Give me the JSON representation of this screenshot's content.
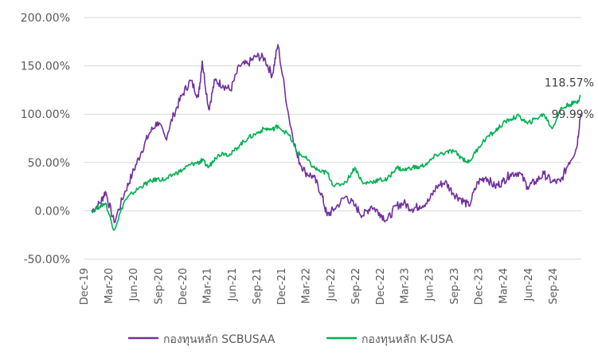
{
  "chart_data": {
    "type": "line",
    "title": "",
    "xlabel": "",
    "ylabel": "",
    "ylim": [
      -50,
      200
    ],
    "yticks": [
      "-50.00%",
      "0.00%",
      "50.00%",
      "100.00%",
      "150.00%",
      "200.00%"
    ],
    "ytick_values": [
      -50,
      0,
      50,
      100,
      150,
      200
    ],
    "xticks": [
      "Dec-19",
      "Mar-20",
      "Jun-20",
      "Sep-20",
      "Dec-20",
      "Mar-21",
      "Jun-21",
      "Sep-21",
      "Dec-21",
      "Mar-22",
      "Jun-22",
      "Sep-22",
      "Dec-22",
      "Mar-23",
      "Jun-23",
      "Sep-23",
      "Dec-23",
      "Mar-24",
      "Jun-24",
      "Sep-24"
    ],
    "grid": "horizontal",
    "legend_position": "bottom",
    "x": [
      "2019-12-31",
      "2020-01-31",
      "2020-02-20",
      "2020-03-23",
      "2020-04-30",
      "2020-05-29",
      "2020-06-30",
      "2020-07-31",
      "2020-08-31",
      "2020-09-30",
      "2020-10-30",
      "2020-11-30",
      "2020-12-31",
      "2021-01-29",
      "2021-02-12",
      "2021-03-08",
      "2021-03-31",
      "2021-04-30",
      "2021-05-28",
      "2021-06-30",
      "2021-07-30",
      "2021-08-31",
      "2021-09-30",
      "2021-10-29",
      "2021-11-19",
      "2021-12-31",
      "2022-01-31",
      "2022-02-28",
      "2022-03-31",
      "2022-04-29",
      "2022-05-20",
      "2022-06-16",
      "2022-07-29",
      "2022-08-31",
      "2022-09-30",
      "2022-10-31",
      "2022-11-30",
      "2022-12-28",
      "2023-01-31",
      "2023-02-28",
      "2023-03-31",
      "2023-04-28",
      "2023-05-31",
      "2023-06-30",
      "2023-07-31",
      "2023-08-31",
      "2023-09-29",
      "2023-10-27",
      "2023-11-30",
      "2023-12-29",
      "2024-01-31",
      "2024-02-29",
      "2024-03-28",
      "2024-04-30",
      "2024-05-31",
      "2024-06-28",
      "2024-07-31",
      "2024-08-30",
      "2024-09-30",
      "2024-10-31",
      "2024-11-29",
      "2024-12-13"
    ],
    "series": [
      {
        "name": "กองทุนหลัก SCBUSAA",
        "color": "#7030A0",
        "values": [
          0,
          8,
          20,
          -12,
          18,
          38,
          60,
          80,
          92,
          75,
          100,
          120,
          135,
          118,
          155,
          105,
          135,
          130,
          125,
          150,
          152,
          160,
          158,
          140,
          172,
          95,
          55,
          40,
          35,
          18,
          -5,
          2,
          15,
          5,
          -5,
          5,
          -2,
          -10,
          5,
          8,
          2,
          5,
          10,
          25,
          30,
          18,
          12,
          5,
          30,
          35,
          25,
          30,
          38,
          40,
          25,
          30,
          38,
          30,
          30,
          50,
          65,
          99.99
        ]
      },
      {
        "name": "กองทุนหลัก K-USA",
        "color": "#00B050",
        "values": [
          0,
          5,
          8,
          -20,
          10,
          18,
          25,
          30,
          33,
          32,
          38,
          42,
          48,
          50,
          52,
          45,
          55,
          60,
          58,
          68,
          75,
          80,
          85,
          84,
          88,
          78,
          60,
          55,
          45,
          40,
          40,
          25,
          30,
          45,
          28,
          30,
          32,
          32,
          45,
          42,
          45,
          45,
          50,
          58,
          60,
          62,
          55,
          50,
          65,
          75,
          82,
          90,
          95,
          98,
          90,
          95,
          100,
          85,
          105,
          110,
          112,
          118.57
        ]
      }
    ],
    "end_labels": [
      "118.57%",
      "99.99%"
    ]
  }
}
